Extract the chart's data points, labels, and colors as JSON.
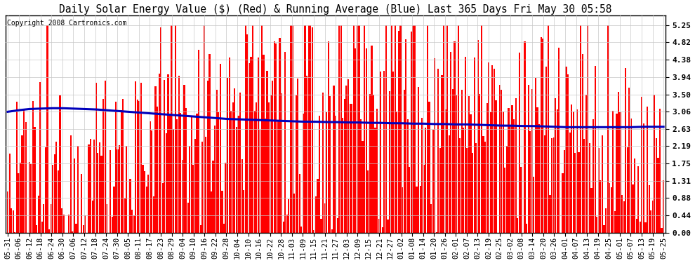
{
  "title": "Daily Solar Energy Value ($) (Red) & Running Average (Blue) Last 365 Days Fri May 30 05:58",
  "copyright": "Copyright 2008 Cartronics.com",
  "ylim": [
    0.0,
    5.5
  ],
  "yticks": [
    0.0,
    0.44,
    0.88,
    1.31,
    1.75,
    2.19,
    2.63,
    3.06,
    3.5,
    3.94,
    4.38,
    4.82,
    5.25
  ],
  "bar_color": "#ff0000",
  "avg_color": "#0000bb",
  "bg_color": "#ffffff",
  "plot_bg_color": "#ffffff",
  "grid_color": "#c8c8c8",
  "title_fontsize": 10.5,
  "copyright_fontsize": 7,
  "tick_fontsize": 7.5,
  "avg_linewidth": 2.2,
  "seed": 12345,
  "n_days": 365,
  "x_labels": [
    "05-31",
    "06-06",
    "06-12",
    "06-18",
    "06-24",
    "06-30",
    "07-06",
    "07-12",
    "07-18",
    "07-24",
    "07-30",
    "08-05",
    "08-11",
    "08-17",
    "08-23",
    "08-29",
    "09-04",
    "09-10",
    "09-16",
    "09-22",
    "09-28",
    "10-04",
    "10-10",
    "10-16",
    "10-22",
    "10-28",
    "11-03",
    "11-09",
    "11-15",
    "11-21",
    "11-27",
    "12-03",
    "12-09",
    "12-15",
    "12-21",
    "12-27",
    "01-02",
    "01-08",
    "01-14",
    "01-20",
    "01-26",
    "02-01",
    "02-07",
    "02-13",
    "02-19",
    "02-25",
    "03-02",
    "03-08",
    "03-14",
    "03-20",
    "03-26",
    "04-01",
    "04-07",
    "04-13",
    "04-19",
    "04-25",
    "05-01",
    "05-07",
    "05-13",
    "05-19",
    "05-25"
  ],
  "avg_values": [
    3.06,
    3.1,
    3.13,
    3.14,
    3.15,
    3.15,
    3.14,
    3.13,
    3.12,
    3.1,
    3.08,
    3.06,
    3.04,
    3.02,
    3.0,
    2.98,
    2.96,
    2.94,
    2.92,
    2.9,
    2.88,
    2.87,
    2.86,
    2.85,
    2.84,
    2.83,
    2.82,
    2.81,
    2.81,
    2.8,
    2.8,
    2.79,
    2.79,
    2.78,
    2.78,
    2.77,
    2.77,
    2.76,
    2.76,
    2.75,
    2.75,
    2.74,
    2.74,
    2.73,
    2.72,
    2.71,
    2.71,
    2.7,
    2.7,
    2.69,
    2.68,
    2.67,
    2.67,
    2.67,
    2.67,
    2.67,
    2.67,
    2.67,
    2.68,
    2.68,
    2.68
  ]
}
